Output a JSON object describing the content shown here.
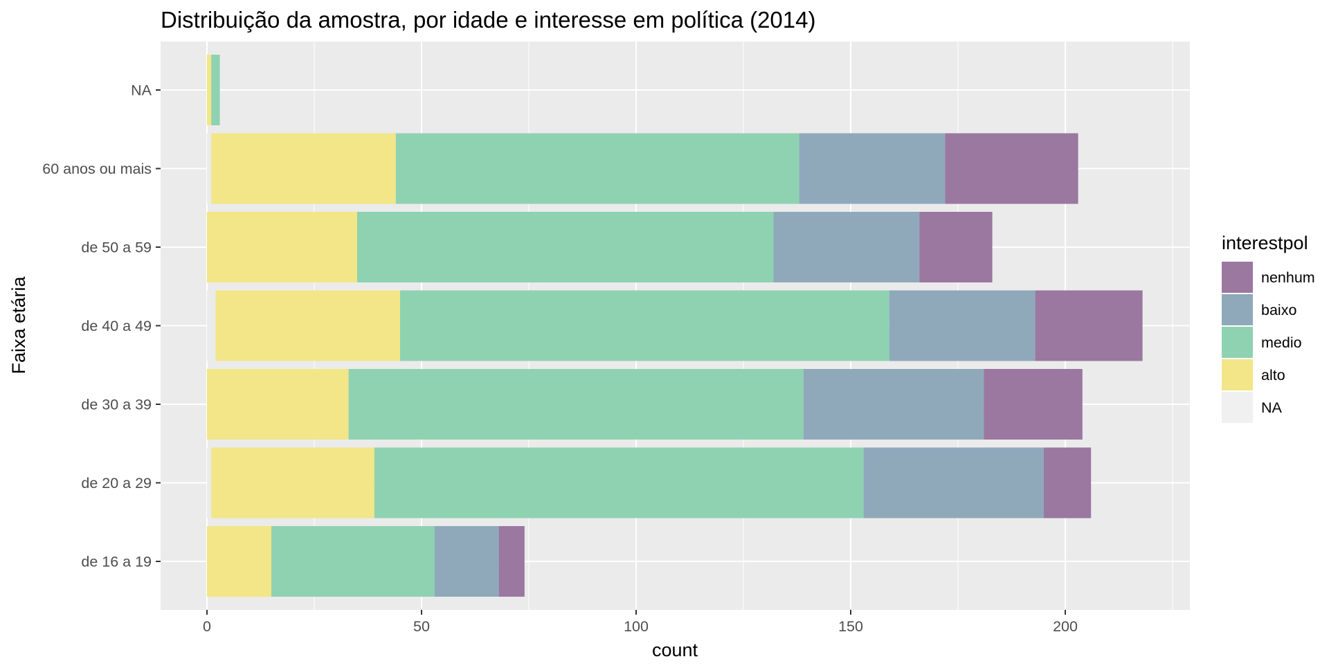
{
  "chart_data": {
    "type": "bar",
    "orientation": "horizontal",
    "stacked": true,
    "title": "Distribuição da amostra, por idade e interesse em política (2014)",
    "xlabel": "count",
    "ylabel": "Faixa etária",
    "xlim": [
      -11,
      229
    ],
    "x_ticks": [
      0,
      50,
      100,
      150,
      200
    ],
    "x_tick_labels": [
      "0",
      "50",
      "100",
      "150",
      "200"
    ],
    "grid": true,
    "categories": [
      "de 16 a 19",
      "de 20 a 29",
      "de 30 a 39",
      "de 40 a 49",
      "de 50 a 59",
      "60 anos ou mais",
      "NA"
    ],
    "stack_order_from_zero": [
      "NA",
      "alto",
      "medio",
      "baixo",
      "nenhum"
    ],
    "series": [
      {
        "name": "nenhum",
        "color": "#9a78a0",
        "values": [
          6,
          11,
          23,
          25,
          17,
          31,
          0
        ]
      },
      {
        "name": "baixo",
        "color": "#8fa9bb",
        "values": [
          15,
          42,
          42,
          34,
          34,
          34,
          0
        ]
      },
      {
        "name": "medio",
        "color": "#8fd2b1",
        "values": [
          38,
          114,
          106,
          114,
          97,
          94,
          2
        ]
      },
      {
        "name": "alto",
        "color": "#f2e688",
        "values": [
          15,
          38,
          33,
          43,
          35,
          43,
          1
        ]
      },
      {
        "name": "NA",
        "color": "#ebebeb",
        "values": [
          0,
          1,
          0,
          2,
          0,
          1,
          0
        ]
      }
    ],
    "legend": {
      "title": "interestpol",
      "position": "right",
      "items": [
        "nenhum",
        "baixo",
        "medio",
        "alto",
        "NA"
      ],
      "na_key_color": "#f0f0f0"
    },
    "panel_background": "#ebebeb",
    "grid_color": "#ffffff"
  }
}
